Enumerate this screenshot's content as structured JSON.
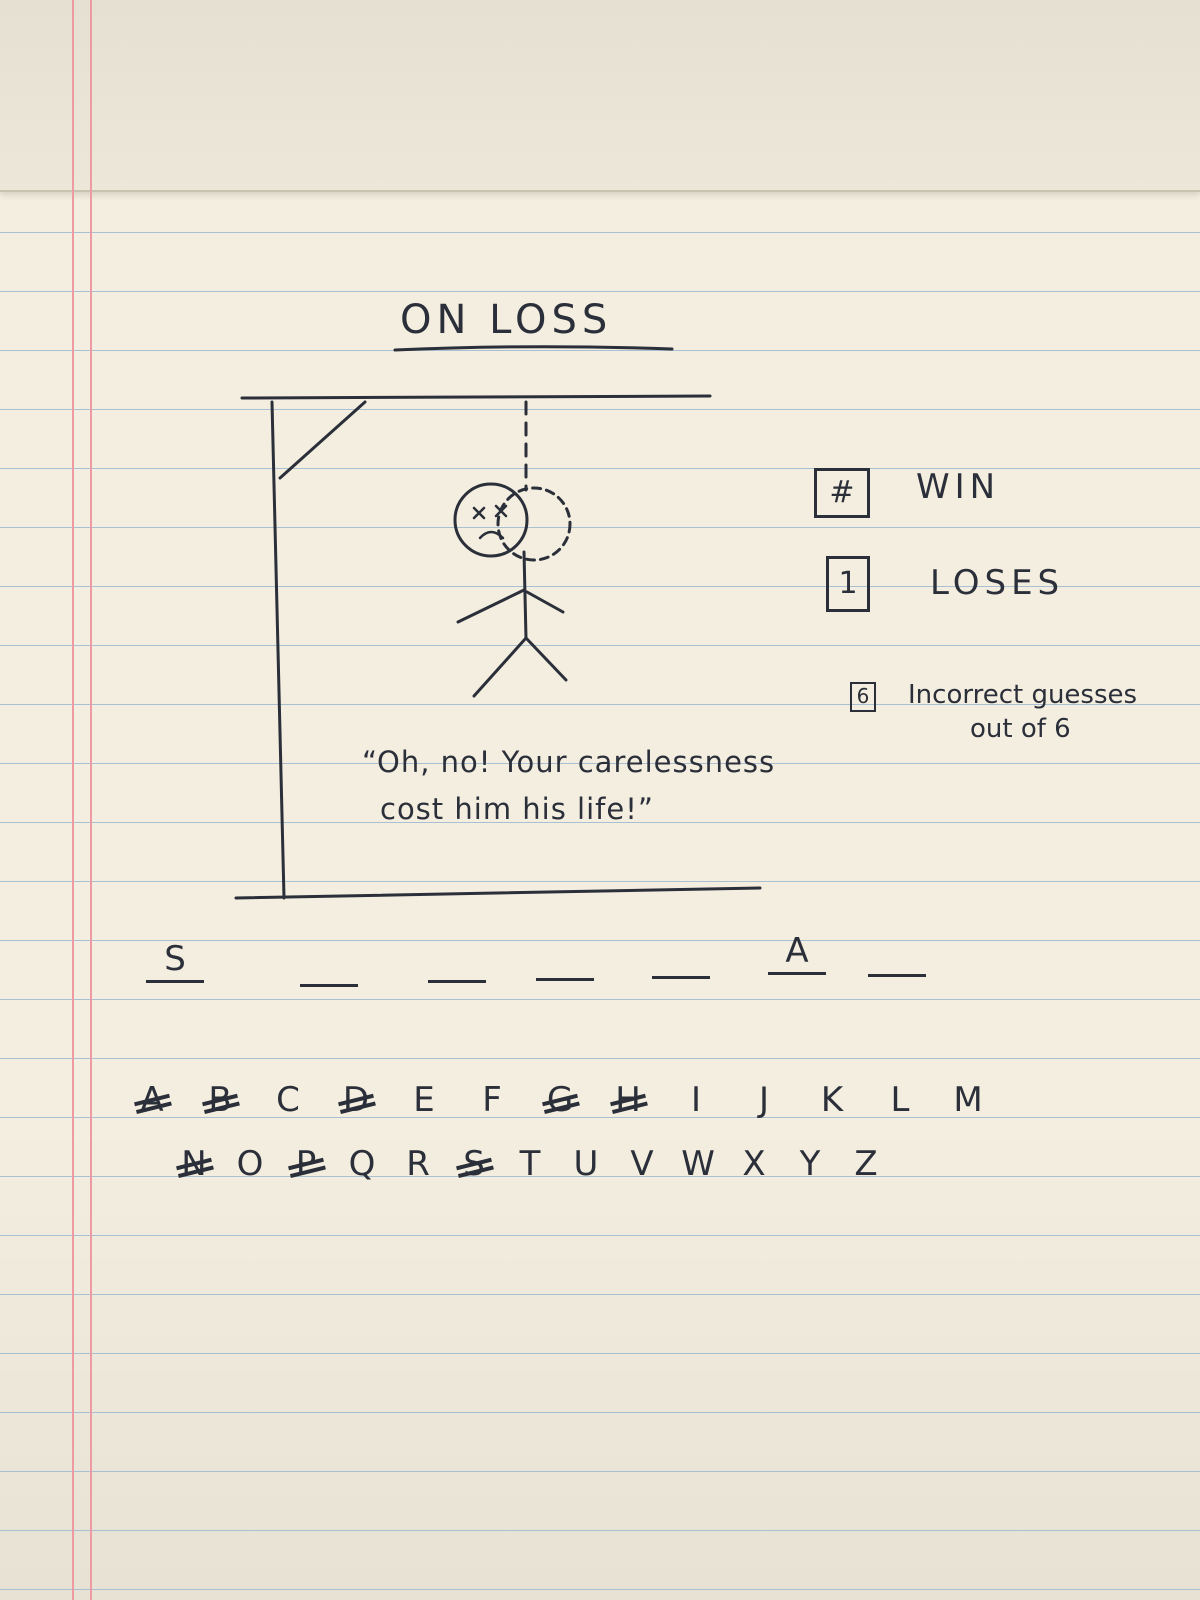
{
  "title": "ON LOSS",
  "stats": {
    "wins": {
      "count": "#",
      "label": "WIN"
    },
    "losses": {
      "count": "1",
      "label": "LOSES"
    },
    "incorrect": {
      "count": "6",
      "label_line1": "Incorrect guesses",
      "label_line2": "out of 6"
    }
  },
  "message": {
    "line1": "“Oh, no! Your carelessness",
    "line2": "cost him his life!”"
  },
  "word": {
    "slots": [
      "S",
      "",
      "",
      "",
      "",
      "A",
      ""
    ]
  },
  "keyboard": {
    "row1": [
      {
        "letter": "A",
        "used": true
      },
      {
        "letter": "B",
        "used": true
      },
      {
        "letter": "C",
        "used": false
      },
      {
        "letter": "D",
        "used": true
      },
      {
        "letter": "E",
        "used": false
      },
      {
        "letter": "F",
        "used": false
      },
      {
        "letter": "G",
        "used": true
      },
      {
        "letter": "H",
        "used": true
      },
      {
        "letter": "I",
        "used": false
      },
      {
        "letter": "J",
        "used": false
      },
      {
        "letter": "K",
        "used": false
      },
      {
        "letter": "L",
        "used": false
      },
      {
        "letter": "M",
        "used": false
      }
    ],
    "row2": [
      {
        "letter": "N",
        "used": true
      },
      {
        "letter": "O",
        "used": false
      },
      {
        "letter": "P",
        "used": true
      },
      {
        "letter": "Q",
        "used": false
      },
      {
        "letter": "R",
        "used": false
      },
      {
        "letter": "S",
        "used": true
      },
      {
        "letter": "T",
        "used": false
      },
      {
        "letter": "U",
        "used": false
      },
      {
        "letter": "V",
        "used": false
      },
      {
        "letter": "W",
        "used": false
      },
      {
        "letter": "X",
        "used": false
      },
      {
        "letter": "Y",
        "used": false
      },
      {
        "letter": "Z",
        "used": false
      }
    ]
  },
  "colors": {
    "paper": "#f3eedf",
    "rule": "#a9bfd2",
    "margin": "#ee9aa2",
    "ink": "#2b2f3a"
  }
}
